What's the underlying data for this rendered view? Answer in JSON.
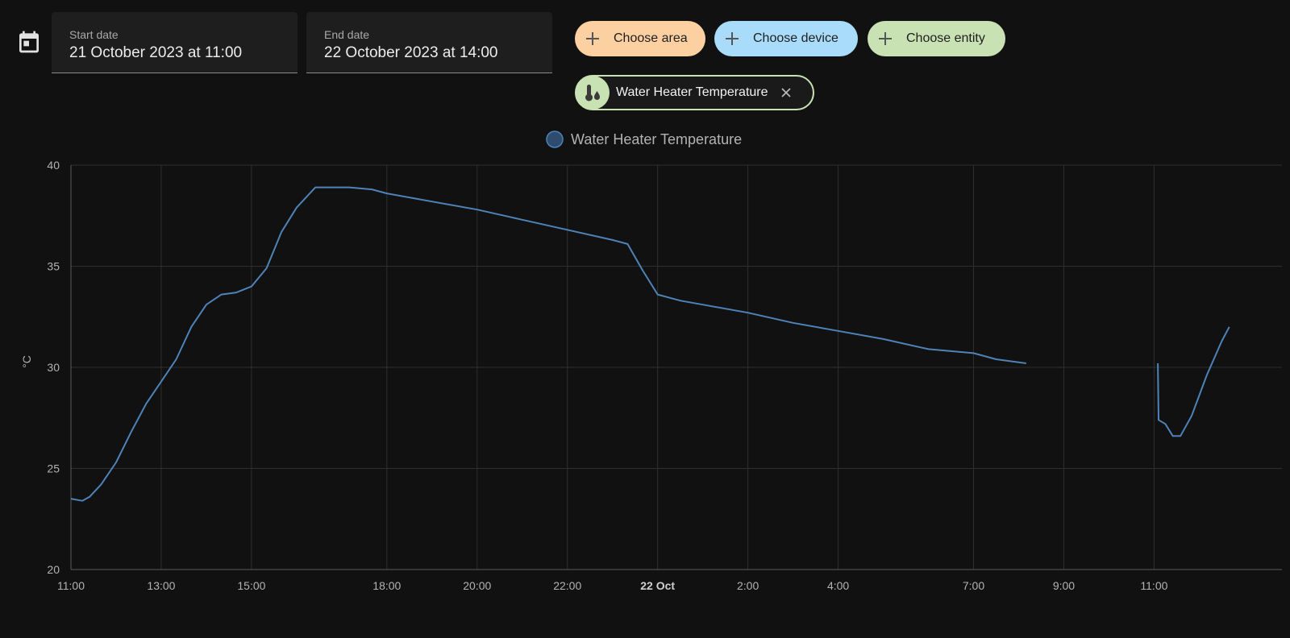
{
  "date_picker": {
    "start": {
      "label": "Start date",
      "value": "21 October 2023 at 11:00"
    },
    "end": {
      "label": "End date",
      "value": "22 October 2023 at 14:00"
    }
  },
  "targets": {
    "area_label": "Choose area",
    "device_label": "Choose device",
    "entity_label": "Choose entity",
    "selected_entity": "Water Heater Temperature"
  },
  "colors": {
    "area": "#fdd0a2",
    "device": "#a9dcfb",
    "entity": "#c8e2b4",
    "series": "#4e83b9"
  },
  "chart_data": {
    "type": "line",
    "title": "",
    "ylabel": "°C",
    "ylim": [
      20,
      40
    ],
    "yticks": [
      "20",
      "25",
      "30",
      "35",
      "40"
    ],
    "xlim": [
      "2023-10-21 11:00",
      "2023-10-22 13:50"
    ],
    "xticks": [
      {
        "t": "2023-10-21 11:00",
        "label": "11:00"
      },
      {
        "t": "2023-10-21 13:00",
        "label": "13:00"
      },
      {
        "t": "2023-10-21 15:00",
        "label": "15:00"
      },
      {
        "t": "2023-10-21 18:00",
        "label": "18:00"
      },
      {
        "t": "2023-10-21 20:00",
        "label": "20:00"
      },
      {
        "t": "2023-10-21 22:00",
        "label": "22:00"
      },
      {
        "t": "2023-10-22 00:00",
        "label": "22 Oct",
        "bold": true
      },
      {
        "t": "2023-10-22 02:00",
        "label": "2:00"
      },
      {
        "t": "2023-10-22 04:00",
        "label": "4:00"
      },
      {
        "t": "2023-10-22 07:00",
        "label": "7:00"
      },
      {
        "t": "2023-10-22 09:00",
        "label": "9:00"
      },
      {
        "t": "2023-10-22 11:00",
        "label": "11:00"
      }
    ],
    "series": [
      {
        "name": "Water Heater Temperature",
        "segments": [
          [
            [
              "2023-10-21 11:00",
              23.5
            ],
            [
              "2023-10-21 11:15",
              23.4
            ],
            [
              "2023-10-21 11:25",
              23.6
            ],
            [
              "2023-10-21 11:40",
              24.2
            ],
            [
              "2023-10-21 12:00",
              25.3
            ],
            [
              "2023-10-21 12:20",
              26.8
            ],
            [
              "2023-10-21 12:40",
              28.2
            ],
            [
              "2023-10-21 13:00",
              29.3
            ],
            [
              "2023-10-21 13:20",
              30.4
            ],
            [
              "2023-10-21 13:40",
              32.0
            ],
            [
              "2023-10-21 14:00",
              33.1
            ],
            [
              "2023-10-21 14:20",
              33.6
            ],
            [
              "2023-10-21 14:40",
              33.7
            ],
            [
              "2023-10-21 15:00",
              34.0
            ],
            [
              "2023-10-21 15:20",
              34.9
            ],
            [
              "2023-10-21 15:40",
              36.7
            ],
            [
              "2023-10-21 16:00",
              37.9
            ],
            [
              "2023-10-21 16:25",
              38.9
            ],
            [
              "2023-10-21 17:10",
              38.9
            ],
            [
              "2023-10-21 17:40",
              38.8
            ],
            [
              "2023-10-21 18:00",
              38.6
            ],
            [
              "2023-10-21 19:00",
              38.2
            ],
            [
              "2023-10-21 20:00",
              37.8
            ],
            [
              "2023-10-21 21:00",
              37.3
            ],
            [
              "2023-10-21 22:00",
              36.8
            ],
            [
              "2023-10-21 23:00",
              36.3
            ],
            [
              "2023-10-21 23:20",
              36.1
            ],
            [
              "2023-10-21 23:40",
              34.8
            ],
            [
              "2023-10-22 00:00",
              33.6
            ],
            [
              "2023-10-22 00:30",
              33.3
            ],
            [
              "2023-10-22 01:00",
              33.1
            ],
            [
              "2023-10-22 02:00",
              32.7
            ],
            [
              "2023-10-22 03:00",
              32.2
            ],
            [
              "2023-10-22 04:00",
              31.8
            ],
            [
              "2023-10-22 05:00",
              31.4
            ],
            [
              "2023-10-22 06:00",
              30.9
            ],
            [
              "2023-10-22 07:00",
              30.7
            ],
            [
              "2023-10-22 07:30",
              30.4
            ],
            [
              "2023-10-22 08:10",
              30.2
            ]
          ],
          [
            [
              "2023-10-22 11:05",
              30.2
            ],
            [
              "2023-10-22 11:06",
              27.4
            ],
            [
              "2023-10-22 11:15",
              27.2
            ],
            [
              "2023-10-22 11:25",
              26.6
            ],
            [
              "2023-10-22 11:35",
              26.6
            ],
            [
              "2023-10-22 11:50",
              27.6
            ],
            [
              "2023-10-22 12:10",
              29.6
            ],
            [
              "2023-10-22 12:30",
              31.3
            ],
            [
              "2023-10-22 12:40",
              32.0
            ]
          ]
        ]
      }
    ]
  }
}
